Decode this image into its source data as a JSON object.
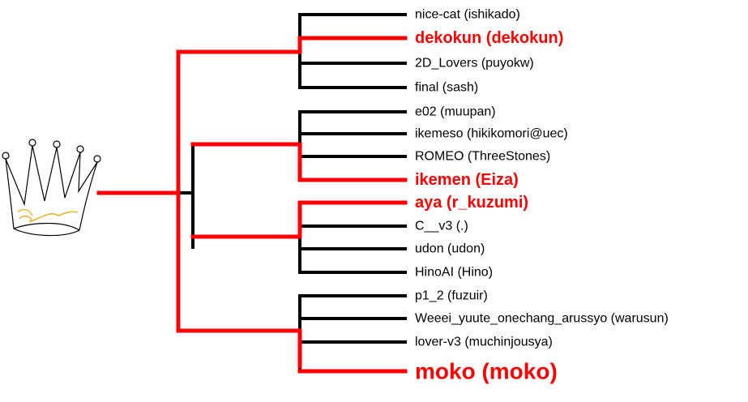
{
  "colors": {
    "winner": "#ff0000",
    "other": "#000000",
    "crown_accent": "#e8b020"
  },
  "icon": "crown-icon",
  "groups": [
    {
      "winner_index": 1,
      "entries": [
        {
          "name": "nice-cat (ishikado)",
          "winner": false
        },
        {
          "name": "dekokun (dekokun)",
          "winner": true
        },
        {
          "name": "2D_Lovers (puyokw)",
          "winner": false
        },
        {
          "name": "final (sash)",
          "winner": false
        }
      ]
    },
    {
      "winner_index": 3,
      "entries": [
        {
          "name": "e02 (muupan)",
          "winner": false
        },
        {
          "name": "ikemeso (hikikomori@uec)",
          "winner": false
        },
        {
          "name": "ROMEO (ThreeStones)",
          "winner": false
        },
        {
          "name": "ikemen (Eiza)",
          "winner": true
        }
      ]
    },
    {
      "winner_index": 0,
      "entries": [
        {
          "name": "aya (r_kuzumi)",
          "winner": true
        },
        {
          "name": "C__v3 (.)",
          "winner": false
        },
        {
          "name": "udon (udon)",
          "winner": false
        },
        {
          "name": "HinoAI (Hino)",
          "winner": false
        }
      ]
    },
    {
      "winner_index": 3,
      "entries": [
        {
          "name": "p1_2 (fuzuir)",
          "winner": false
        },
        {
          "name": "Weeei_yuute_onechang_arussyo (warusun)",
          "winner": false
        },
        {
          "name": "lover-v3 (muchinjousya)",
          "winner": false
        },
        {
          "name": "moko (moko)",
          "winner": true
        }
      ]
    }
  ]
}
